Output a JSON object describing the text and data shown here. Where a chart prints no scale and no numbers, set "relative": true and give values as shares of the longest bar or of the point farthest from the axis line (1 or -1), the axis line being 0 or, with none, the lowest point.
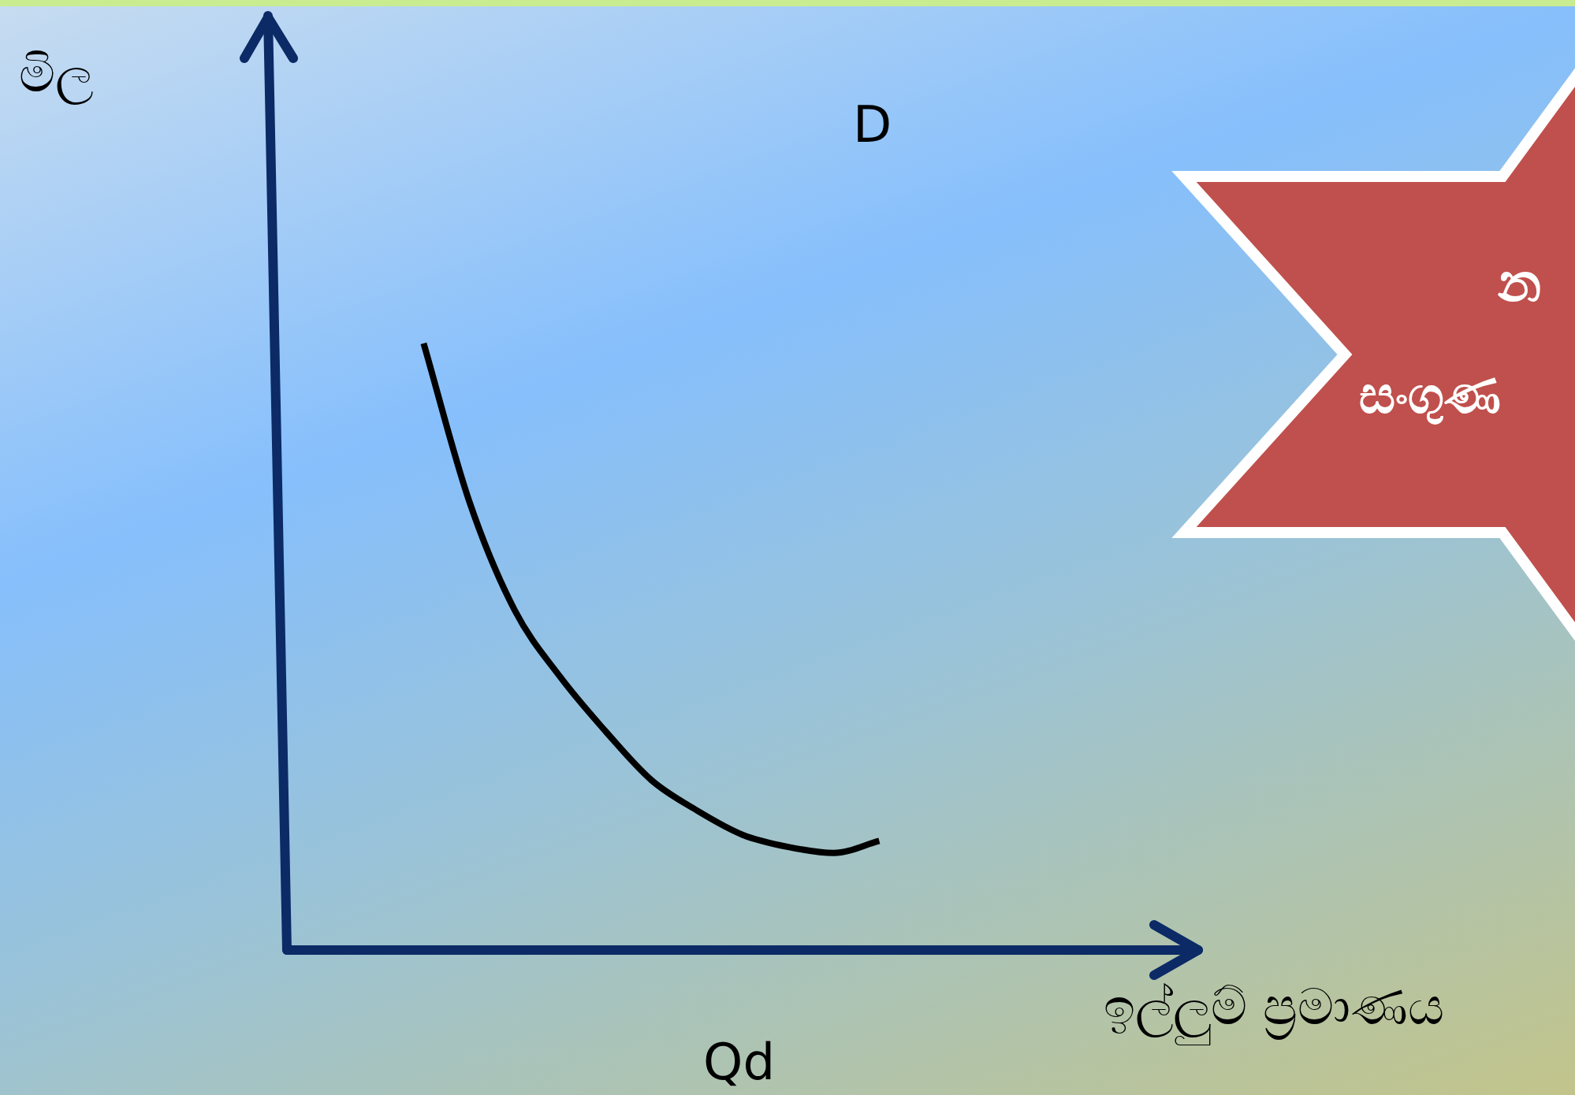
{
  "chart_data": {
    "type": "line",
    "relative": true,
    "xlabel": "ඉල්ලුම් ප්‍රමාණය",
    "categories": [
      null,
      null,
      null,
      null,
      null,
      null,
      null,
      null,
      null,
      null,
      null,
      null,
      null,
      null,
      null,
      null,
      null,
      null,
      null,
      null,
      null
    ],
    "series": [
      {
        "name": "D",
        "color": "#000000",
        "values": [
          null,
          null,
          null,
          1.0,
          0.74,
          0.56,
          0.45,
          0.36,
          0.28,
          0.23,
          0.19,
          0.17,
          0.16,
          0.18,
          null,
          null,
          null,
          null,
          null,
          null,
          null
        ]
      }
    ],
    "annotations": [
      "Qd",
      "න",
      "සංගුණ",
      "මිල"
    ],
    "legend": false,
    "marker": "none",
    "line_style": "solid"
  }
}
